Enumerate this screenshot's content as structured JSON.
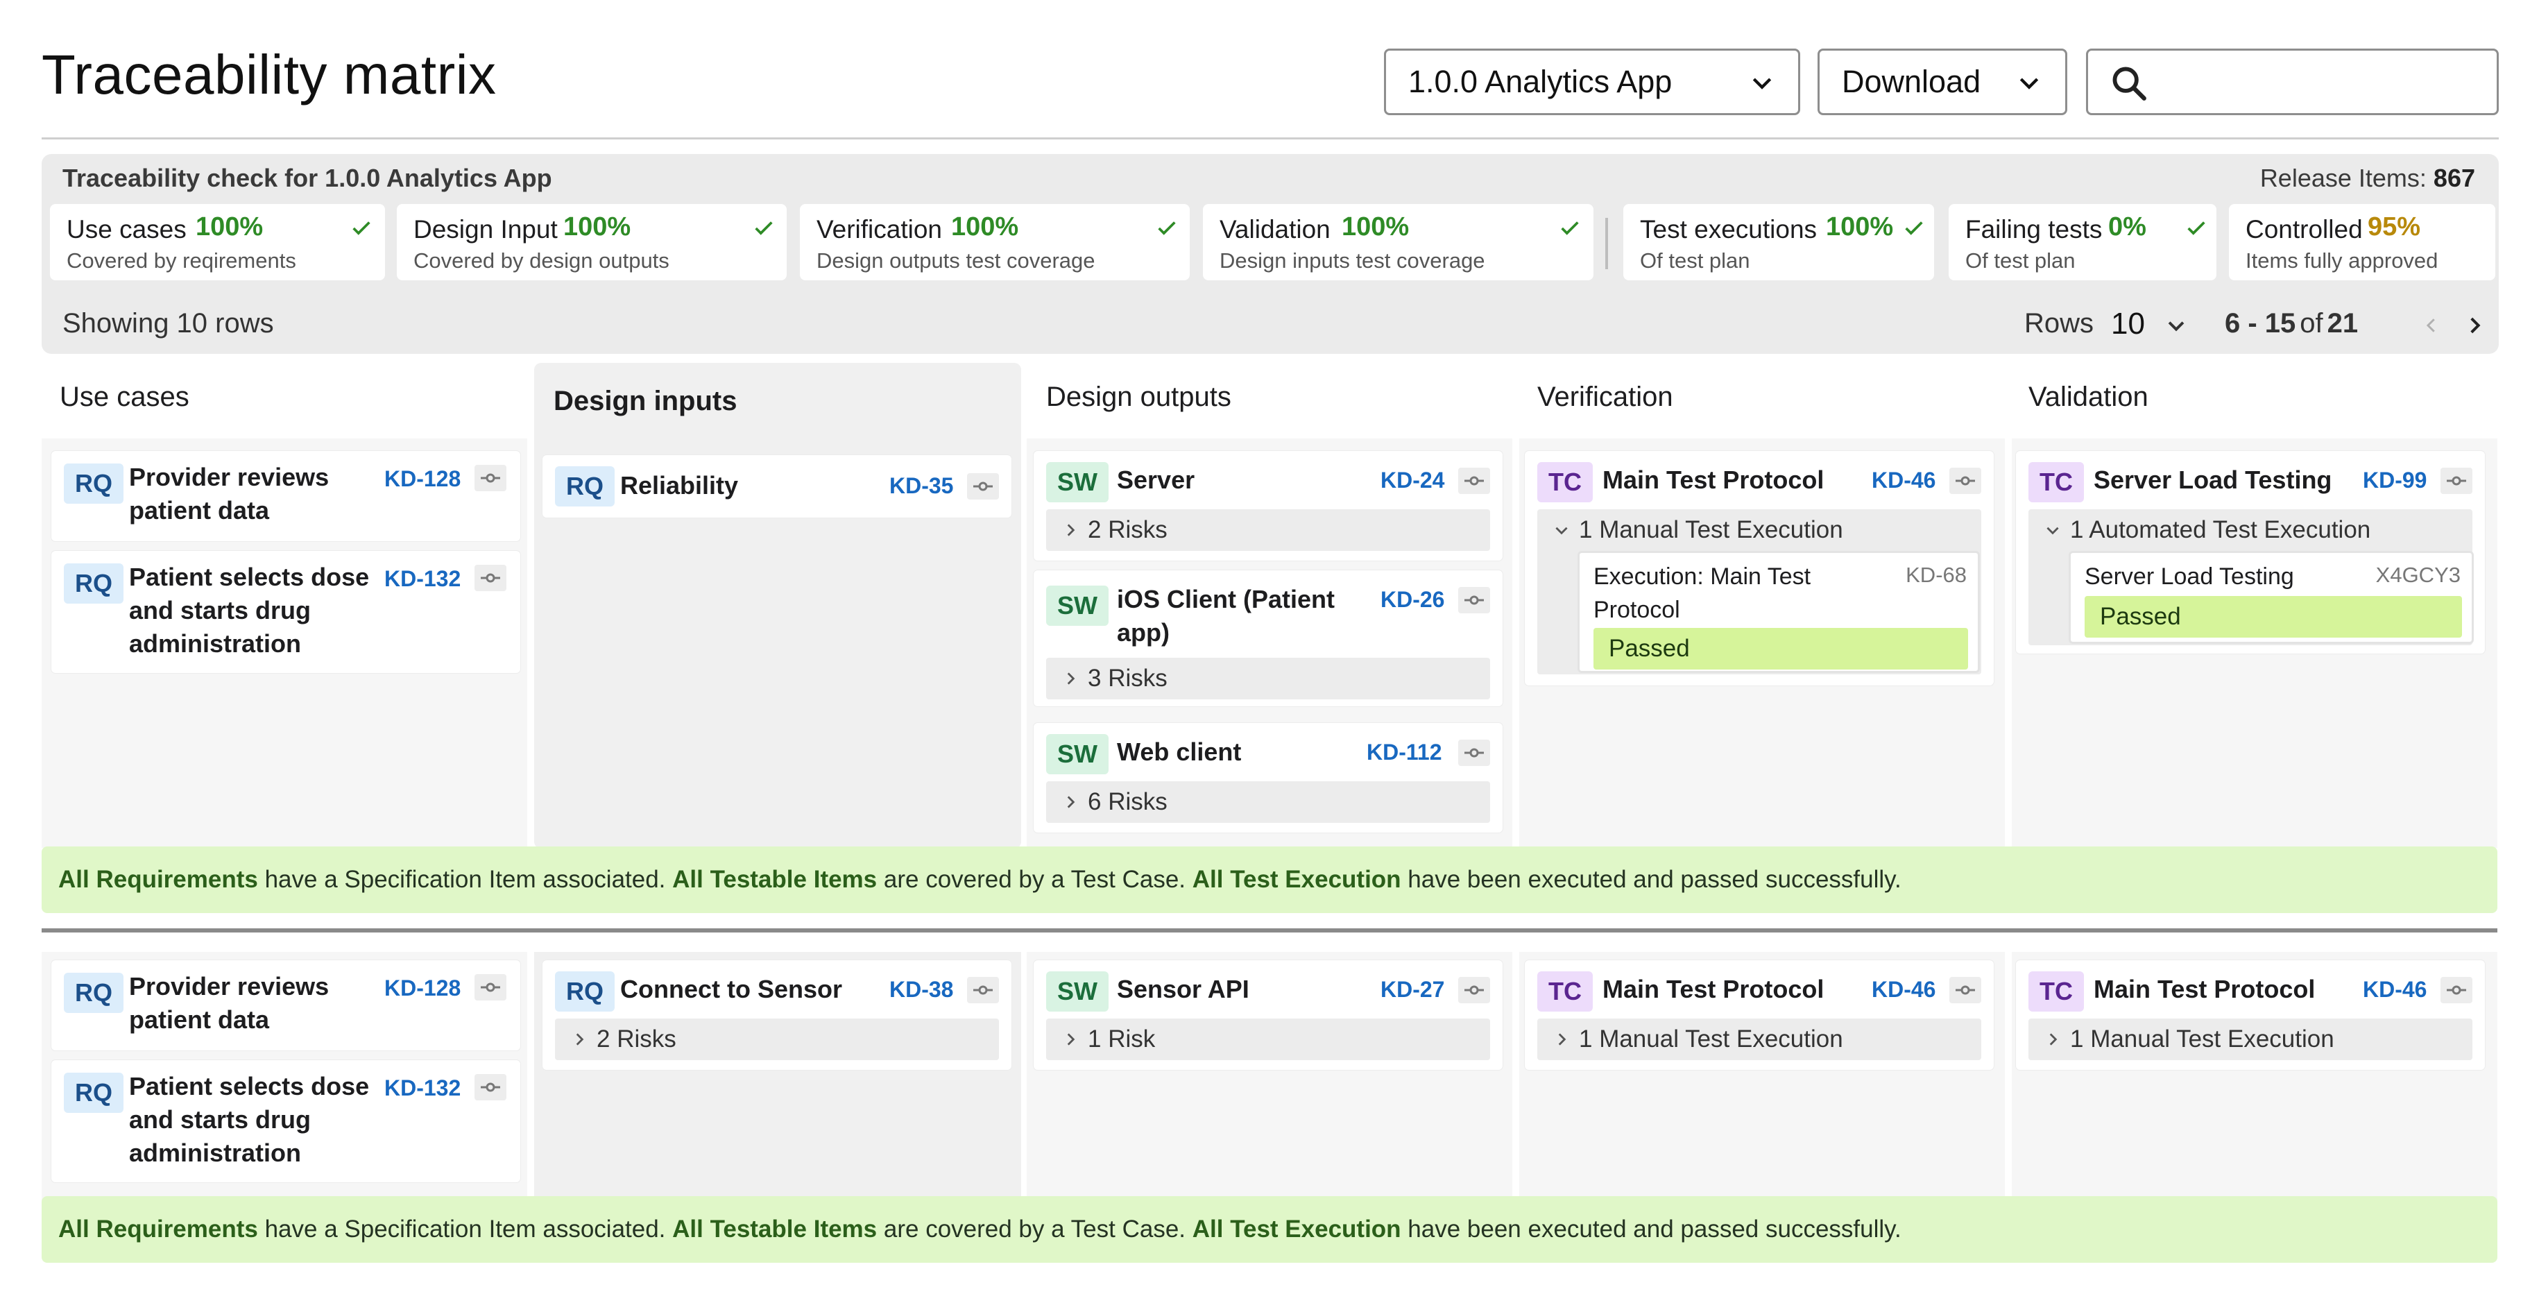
{
  "header": {
    "title": "Traceability matrix",
    "release_select": "1.0.0 Analytics App",
    "download_label": "Download",
    "search_value": ""
  },
  "check": {
    "title": "Traceability check for 1.0.0 Analytics App",
    "release_items_label": "Release Items:",
    "release_items_value": "867",
    "metrics": [
      {
        "label": "Use cases",
        "value": "100%",
        "sub": "Covered by reqirements",
        "ok": true
      },
      {
        "label": "Design Input",
        "value": "100%",
        "sub": "Covered by design outputs",
        "ok": true
      },
      {
        "label": "Verification",
        "value": "100%",
        "sub": "Design outputs test coverage",
        "ok": true
      },
      {
        "label": "Validation",
        "value": "100%",
        "sub": "Design inputs test coverage",
        "ok": true
      },
      {
        "label": "Test executions",
        "value": "100%",
        "sub": "Of test plan",
        "ok": true
      },
      {
        "label": "Failing tests",
        "value": "0%",
        "sub": "Of test plan",
        "ok": true
      },
      {
        "label": "Controlled",
        "value": "95%",
        "sub": "Items fully approved",
        "ok": false
      }
    ],
    "colors": {
      "ok": "#2e8b26",
      "warn": "#b8890b"
    }
  },
  "table": {
    "showing": "Showing 10 rows",
    "rows_label": "Rows",
    "rows_value": "10",
    "range_start": "6 - 15",
    "range_of": "of",
    "range_total": "21"
  },
  "columns": {
    "use_cases": "Use cases",
    "design_inputs": "Design inputs",
    "design_outputs": "Design outputs",
    "verification": "Verification",
    "validation": "Validation"
  },
  "group1": {
    "use_cases": [
      {
        "tag": "RQ",
        "title_l1": "Provider reviews",
        "title_l2": "patient data",
        "title_l3": "",
        "id": "KD-128"
      },
      {
        "tag": "RQ",
        "title_l1": "Patient selects dose",
        "title_l2": "and starts drug",
        "title_l3": "administration",
        "id": "KD-132"
      }
    ],
    "design_inputs": [
      {
        "tag": "RQ",
        "title": "Reliability",
        "id": "KD-35"
      }
    ],
    "design_outputs": [
      {
        "tag": "SW",
        "title_l1": "Server",
        "title_l2": "",
        "id": "KD-24",
        "sub": "2 Risks"
      },
      {
        "tag": "SW",
        "title_l1": "iOS Client (Patient",
        "title_l2": "app)",
        "id": "KD-26",
        "sub": "3 Risks"
      },
      {
        "tag": "SW",
        "title_l1": "Web client",
        "title_l2": "",
        "id": "KD-112",
        "sub": "6 Risks"
      }
    ],
    "verification": {
      "tag": "TC",
      "title": "Main Test Protocol",
      "id": "KD-46",
      "sub": "1 Manual Test Execution",
      "exec_title_l1": "Execution: Main Test",
      "exec_title_l2": "Protocol",
      "exec_id": "KD-68",
      "status": "Passed"
    },
    "validation": {
      "tag": "TC",
      "title": "Server Load Testing",
      "id": "KD-99",
      "sub": "1 Automated Test Execution",
      "exec_title_l1": "Server Load Testing",
      "exec_id": "X4GCY3",
      "status": "Passed"
    },
    "banner": {
      "b1": "All Requirements",
      "t1": " have a Specification Item associated. ",
      "b2": "All Testable Items",
      "t2": " are covered by a Test Case. ",
      "b3": "All Test Execution",
      "t3": " have been executed and passed successfully."
    }
  },
  "group2": {
    "use_cases": [
      {
        "tag": "RQ",
        "title_l1": "Provider reviews",
        "title_l2": "patient data",
        "title_l3": "",
        "id": "KD-128"
      },
      {
        "tag": "RQ",
        "title_l1": "Patient selects dose",
        "title_l2": "and starts drug",
        "title_l3": "administration",
        "id": "KD-132"
      }
    ],
    "design_inputs": [
      {
        "tag": "RQ",
        "title": "Connect to Sensor",
        "id": "KD-38",
        "sub": "2 Risks"
      }
    ],
    "design_outputs": [
      {
        "tag": "SW",
        "title": "Sensor API",
        "id": "KD-27",
        "sub": "1 Risk"
      }
    ],
    "verification": {
      "tag": "TC",
      "title": "Main Test Protocol",
      "id": "KD-46",
      "sub": "1 Manual Test Execution"
    },
    "validation": {
      "tag": "TC",
      "title": "Main Test Protocol",
      "id": "KD-46",
      "sub": "1 Manual Test Execution"
    },
    "banner": {
      "b1": "All Requirements",
      "t1": " have a Specification Item associated. ",
      "b2": "All Testable Items",
      "t2": " are covered by a Test Case. ",
      "b3": "All Test Execution",
      "t3": " have been executed and passed successfully."
    }
  }
}
